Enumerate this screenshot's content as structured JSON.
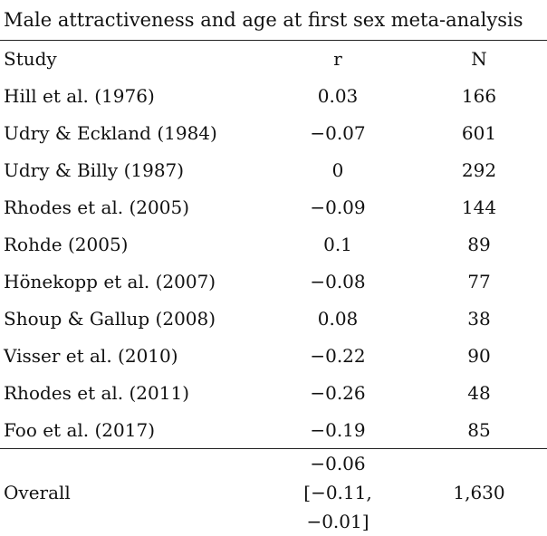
{
  "caption": "Male attractiveness and age at first sex meta-analysis",
  "columns": {
    "study": "Study",
    "r": "r",
    "n": "N"
  },
  "rows": [
    {
      "study": "Hill et al. (1976)",
      "r": "0.03",
      "n": "166"
    },
    {
      "study": "Udry & Eckland (1984)",
      "r": "−0.07",
      "n": "601"
    },
    {
      "study": "Udry & Billy (1987)",
      "r": "0",
      "n": "292"
    },
    {
      "study": "Rhodes et al. (2005)",
      "r": "−0.09",
      "n": "144"
    },
    {
      "study": "Rohde (2005)",
      "r": "0.1",
      "n": "89"
    },
    {
      "study": "Hönekopp et al. (2007)",
      "r": "−0.08",
      "n": "77"
    },
    {
      "study": "Shoup & Gallup (2008)",
      "r": "0.08",
      "n": "38"
    },
    {
      "study": "Visser et al. (2010)",
      "r": "−0.22",
      "n": "90"
    },
    {
      "study": "Rhodes et al. (2011)",
      "r": "−0.26",
      "n": "48"
    },
    {
      "study": "Foo et al. (2017)",
      "r": "−0.19",
      "n": "85"
    }
  ],
  "overall": {
    "label": "Overall",
    "r": "−0.06 [−0.11, −0.01]",
    "n": "1,630"
  }
}
